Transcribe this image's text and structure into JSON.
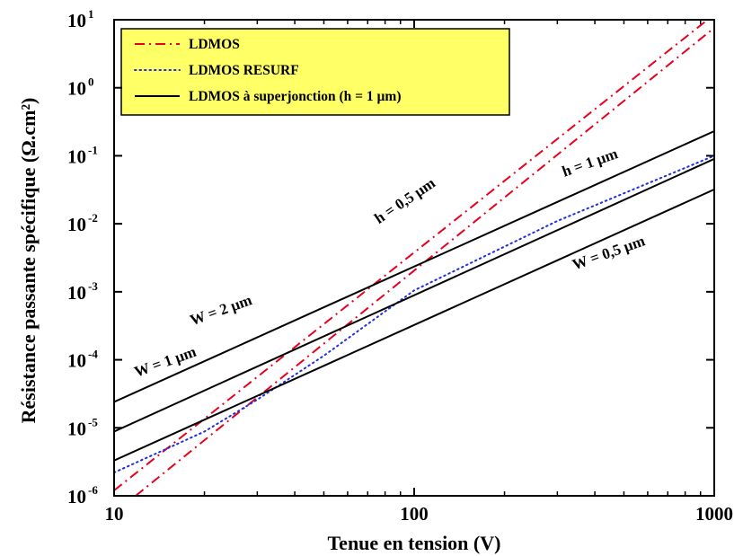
{
  "chart_data": {
    "type": "line",
    "title": "",
    "xlabel": "Tenue en tension (V)",
    "ylabel": "Résistance passante spécifique (Ω.cm²)",
    "xscale": "log",
    "yscale": "log",
    "xlim": [
      10,
      1000
    ],
    "ylim": [
      1e-06,
      10
    ],
    "x_ticks": [
      {
        "value": 10,
        "label": "10"
      },
      {
        "value": 100,
        "label": "100"
      },
      {
        "value": 1000,
        "label": "1000"
      }
    ],
    "y_ticks": [
      {
        "value": 1e-06,
        "base": "10",
        "exp": "-6"
      },
      {
        "value": 1e-05,
        "base": "10",
        "exp": "-5"
      },
      {
        "value": 0.0001,
        "base": "10",
        "exp": "-4"
      },
      {
        "value": 0.001,
        "base": "10",
        "exp": "-3"
      },
      {
        "value": 0.01,
        "base": "10",
        "exp": "-2"
      },
      {
        "value": 0.1,
        "base": "10",
        "exp": "-1"
      },
      {
        "value": 1,
        "base": "10",
        "exp": "0"
      },
      {
        "value": 10,
        "base": "10",
        "exp": "1"
      }
    ],
    "grid": false,
    "legend": {
      "position": "top-left",
      "background": "#ffff66",
      "entries": [
        {
          "label": "LDMOS",
          "style": "dashdot",
          "color": "#e8001c"
        },
        {
          "label": "LDMOS RESURF",
          "style": "dotted",
          "color": "#1f2fe0"
        },
        {
          "label": "LDMOS à superjonction (h = 1 µm)",
          "style": "solid",
          "color": "#000000"
        }
      ]
    },
    "series": [
      {
        "style": "dashdot",
        "color": "#e8001c",
        "points": [
          [
            10,
            1.2e-06
          ],
          [
            950,
            10
          ]
        ]
      },
      {
        "style": "dashdot",
        "color": "#e8001c",
        "points": [
          [
            11.8,
            1e-06
          ],
          [
            1000,
            7.6
          ]
        ]
      },
      {
        "style": "dotted",
        "color": "#1f2fe0",
        "points": [
          [
            10,
            2.2e-06
          ],
          [
            20,
            8.8e-06
          ],
          [
            30,
            2.6e-05
          ],
          [
            50,
            0.000115
          ],
          [
            100,
            0.00105
          ],
          [
            300,
            0.011
          ],
          [
            1000,
            0.1
          ]
        ]
      },
      {
        "style": "solid",
        "color": "#000000",
        "points": [
          [
            10,
            2.4e-05
          ],
          [
            1000,
            0.23
          ]
        ]
      },
      {
        "style": "solid",
        "color": "#000000",
        "points": [
          [
            10,
            8.8e-06
          ],
          [
            1000,
            0.09
          ]
        ]
      },
      {
        "style": "solid",
        "color": "#000000",
        "points": [
          [
            10,
            3.3e-06
          ],
          [
            1000,
            0.032
          ]
        ]
      }
    ],
    "annotations": [
      {
        "text": "W = 2 µm",
        "x": 23,
        "y": 0.00046,
        "angle": -19.5
      },
      {
        "text": "W = 1 µm",
        "x": 15,
        "y": 8e-05,
        "angle": -19.5
      },
      {
        "text": "W = 0,5 µm",
        "x": 450,
        "y": 0.0032,
        "angle": -19.5
      },
      {
        "text": "h = 1 µm",
        "x": 390,
        "y": 0.068,
        "angle": -19.5
      },
      {
        "text": "h = 0,5 µm",
        "x": 95,
        "y": 0.019,
        "angle": -34
      }
    ]
  }
}
